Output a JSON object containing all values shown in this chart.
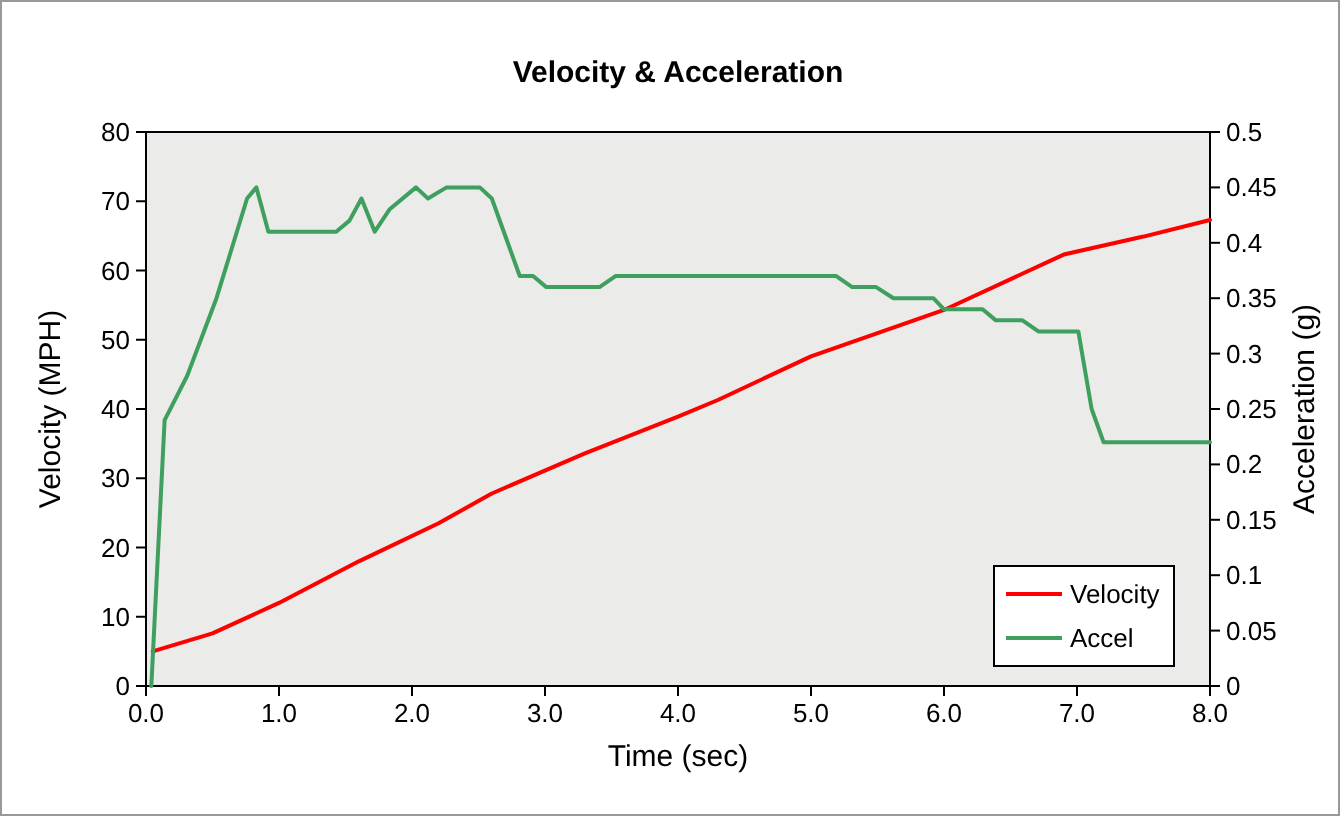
{
  "chart_data": {
    "type": "line",
    "title": "Velocity & Acceleration",
    "xlabel": "Time (sec)",
    "ylabel": "Velocity (MPH)",
    "y2label": "Acceleration (g)",
    "xlim": [
      0,
      8
    ],
    "xticks": [
      {
        "value": 0,
        "label": "0.0"
      },
      {
        "value": 1,
        "label": "1.0"
      },
      {
        "value": 2,
        "label": "2.0"
      },
      {
        "value": 3,
        "label": "3.0"
      },
      {
        "value": 4,
        "label": "4.0"
      },
      {
        "value": 5,
        "label": "5.0"
      },
      {
        "value": 6,
        "label": "6.0"
      },
      {
        "value": 7,
        "label": "7.0"
      },
      {
        "value": 8,
        "label": "8.0"
      }
    ],
    "ylim": [
      0,
      80
    ],
    "yticks": [
      0,
      10,
      20,
      30,
      40,
      50,
      60,
      70,
      80
    ],
    "y2lim": [
      0,
      0.5
    ],
    "y2ticks": [
      0,
      0.05,
      0.1,
      0.15,
      0.2,
      0.25,
      0.3,
      0.35,
      0.4,
      0.45,
      0.5
    ],
    "grid": false,
    "legend": "bottom right",
    "marker": "none",
    "line_style": "solid",
    "series": [
      {
        "name": "Velocity",
        "color": "#ff0000",
        "x": [
          0.05,
          0.5,
          1.0,
          1.6,
          2.2,
          2.6,
          3.3,
          4.0,
          4.3,
          5.0,
          6.0,
          6.9,
          7.5,
          8.0
        ],
        "values": [
          5,
          7.6,
          12,
          18,
          23.5,
          27.8,
          33.6,
          38.9,
          41.3,
          47.6,
          54.3,
          62.3,
          64.9,
          67.3
        ]
      },
      {
        "name": "Accel",
        "color": "#3f9f5f",
        "axis": "y2",
        "x": [
          0.04,
          0.14,
          0.31,
          0.53,
          0.76,
          0.83,
          0.92,
          1.43,
          1.53,
          1.62,
          1.72,
          1.83,
          2.03,
          2.12,
          2.26,
          2.51,
          2.6,
          2.81,
          2.91,
          3.01,
          3.41,
          3.53,
          5.19,
          5.31,
          5.49,
          5.62,
          5.92,
          6.0,
          6.29,
          6.39,
          6.59,
          6.71,
          7.01,
          7.11,
          7.2,
          8.0
        ],
        "values": [
          0,
          0.24,
          0.28,
          0.35,
          0.44,
          0.45,
          0.41,
          0.41,
          0.42,
          0.44,
          0.41,
          0.43,
          0.45,
          0.44,
          0.45,
          0.45,
          0.44,
          0.37,
          0.37,
          0.36,
          0.36,
          0.37,
          0.37,
          0.36,
          0.36,
          0.35,
          0.35,
          0.34,
          0.34,
          0.33,
          0.33,
          0.32,
          0.32,
          0.25,
          0.22,
          0.22
        ]
      }
    ]
  }
}
